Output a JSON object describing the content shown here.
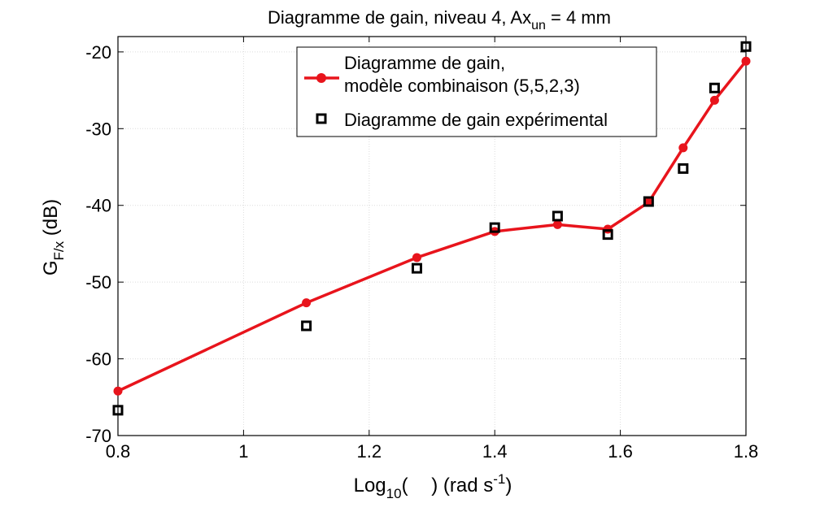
{
  "chart_data": {
    "type": "line",
    "title_parts": {
      "main": "Diagramme de gain, niveau 4, Ax",
      "sub": "un",
      "tail": " = 4 mm"
    },
    "xlabel_parts": {
      "main": "Log",
      "sub": "10",
      "open": "(",
      "close": ") (rad s",
      "sup": "-1",
      "end": ")"
    },
    "ylabel_parts": {
      "main": "G",
      "sub": "F/x",
      "tail": " (dB)"
    },
    "xlim": [
      0.8,
      1.8
    ],
    "ylim": [
      -70,
      -18
    ],
    "xticks": [
      0.8,
      1.0,
      1.2,
      1.4,
      1.6,
      1.8
    ],
    "xtick_labels": [
      "0.8",
      "1",
      "1.2",
      "1.4",
      "1.6",
      "1.8"
    ],
    "yticks": [
      -70,
      -60,
      -50,
      -40,
      -30,
      -20
    ],
    "ytick_labels": [
      "-70",
      "-60",
      "-50",
      "-40",
      "-30",
      "-20"
    ],
    "grid": true,
    "legend_position": "top-center",
    "series": [
      {
        "name": "Diagramme de gain,",
        "name_line2": "modèle combinaison (5,5,2,3)",
        "kind": "line-marker",
        "color": "#e8141c",
        "x": [
          0.8,
          1.1,
          1.276,
          1.4,
          1.5,
          1.58,
          1.645,
          1.7,
          1.75,
          1.8
        ],
        "y": [
          -64.2,
          -52.7,
          -46.8,
          -43.4,
          -42.5,
          -43.1,
          -39.6,
          -32.5,
          -26.3,
          -21.2
        ]
      },
      {
        "name": "Diagramme de gain expérimental",
        "kind": "marker",
        "color": "#000000",
        "x": [
          0.8,
          1.1,
          1.276,
          1.4,
          1.5,
          1.58,
          1.645,
          1.7,
          1.75,
          1.8
        ],
        "y": [
          -66.7,
          -55.7,
          -48.2,
          -42.9,
          -41.4,
          -43.8,
          -39.5,
          -35.2,
          -24.7,
          -19.3
        ]
      }
    ]
  }
}
